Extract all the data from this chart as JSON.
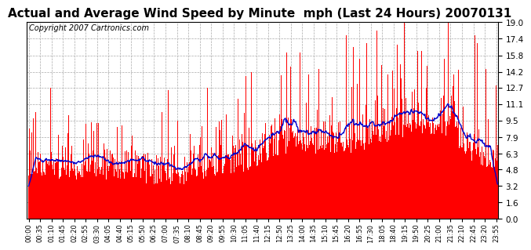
{
  "title": "Actual and Average Wind Speed by Minute  mph (Last 24 Hours) 20070131",
  "copyright": "Copyright 2007 Cartronics.com",
  "yticks": [
    0.0,
    1.6,
    3.2,
    4.8,
    6.3,
    7.9,
    9.5,
    11.1,
    12.7,
    14.2,
    15.8,
    17.4,
    19.0
  ],
  "ymin": 0.0,
  "ymax": 19.0,
  "bar_color": "#FF0000",
  "line_color": "#0000CC",
  "background_color": "#FFFFFF",
  "grid_color": "#AAAAAA",
  "title_fontsize": 11,
  "copyright_fontsize": 7,
  "tick_step": 35
}
